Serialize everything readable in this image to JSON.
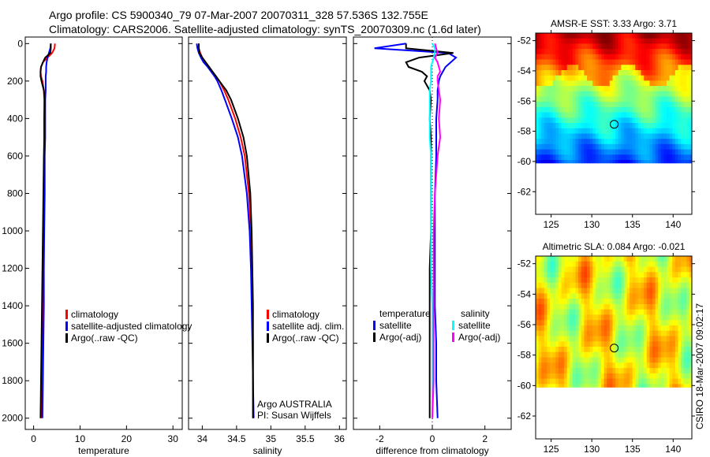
{
  "header": {
    "line1": "Argo profile: CS 5900340_79 07-Mar-2007 20070311_328 57.536S 132.755E",
    "line2": "Climatology: CARS2006. Satellite-adjusted climatology: synTS_20070309.nc (1.6d later)"
  },
  "credit": "CSIRO 18-Mar-2007 09:02:17",
  "colors": {
    "red": "#ff0000",
    "blue": "#0000ff",
    "black": "#000000",
    "cyan": "#00ffff",
    "magenta": "#ff00ff"
  },
  "chart_data": [
    {
      "type": "line",
      "id": "temperature",
      "xlabel": "temperature",
      "xlim": [
        -1.8,
        32
      ],
      "ylim": [
        -35,
        2060
      ],
      "xticks": [
        0,
        10,
        20,
        30
      ],
      "yticks": [
        0,
        200,
        400,
        600,
        800,
        1000,
        1200,
        1400,
        1600,
        1800,
        2000
      ],
      "depth": [
        0,
        25,
        50,
        75,
        100,
        125,
        150,
        175,
        200,
        250,
        300,
        400,
        500,
        600,
        800,
        1000,
        1200,
        1400,
        1600,
        1800,
        2000
      ],
      "series": [
        {
          "name": "climatology",
          "color": "#ff0000",
          "values": [
            4.6,
            4.5,
            4.0,
            3.0,
            2.0,
            1.6,
            1.5,
            1.6,
            1.9,
            2.2,
            2.3,
            2.3,
            2.3,
            2.3,
            2.3,
            2.2,
            2.1,
            2.0,
            1.9,
            1.8,
            1.6
          ]
        },
        {
          "name": "satellite-adjusted climatology",
          "color": "#0000ff",
          "values": [
            3.7,
            3.6,
            3.3,
            3.0,
            2.8,
            2.7,
            2.7,
            2.6,
            2.6,
            2.6,
            2.5,
            2.5,
            2.5,
            2.4,
            2.4,
            2.3,
            2.2,
            2.2,
            2.1,
            2.0,
            1.9
          ]
        },
        {
          "name": "Argo(..raw -QC)",
          "color": "#000000",
          "values": [
            3.7,
            3.7,
            3.6,
            2.5,
            2.0,
            1.6,
            1.5,
            1.5,
            1.7,
            2.2,
            2.4,
            2.3,
            2.3,
            2.2,
            2.1,
            2.0,
            1.9,
            1.8,
            1.7,
            1.6,
            1.5
          ]
        }
      ]
    },
    {
      "type": "line",
      "id": "salinity",
      "xlabel": "salinity",
      "xlim": [
        33.8,
        36.1
      ],
      "ylim": [
        -35,
        2060
      ],
      "xticks": [
        34,
        34.5,
        35,
        35.5,
        36
      ],
      "depth": [
        0,
        25,
        50,
        75,
        100,
        125,
        150,
        175,
        200,
        250,
        300,
        400,
        500,
        600,
        800,
        1000,
        1200,
        1400,
        1600,
        1800,
        2000
      ],
      "series": [
        {
          "name": "climatology",
          "color": "#ff0000",
          "values": [
            33.95,
            33.95,
            33.97,
            34.0,
            34.05,
            34.1,
            34.15,
            34.2,
            34.25,
            34.32,
            34.38,
            34.48,
            34.56,
            34.62,
            34.68,
            34.71,
            34.72,
            34.73,
            34.74,
            34.74,
            34.74
          ]
        },
        {
          "name": "satellite adj. clim.",
          "color": "#0000ff",
          "values": [
            33.92,
            33.93,
            33.95,
            33.98,
            34.02,
            34.08,
            34.13,
            34.18,
            34.22,
            34.28,
            34.33,
            34.43,
            34.52,
            34.58,
            34.65,
            34.69,
            34.71,
            34.72,
            34.73,
            34.74,
            34.75
          ]
        },
        {
          "name": "Argo(..raw -QC)",
          "color": "#000000",
          "values": [
            33.95,
            33.95,
            33.96,
            34.0,
            34.05,
            34.1,
            34.15,
            34.2,
            34.25,
            34.35,
            34.42,
            34.52,
            34.6,
            34.65,
            34.7,
            34.72,
            34.73,
            34.74,
            34.74,
            34.74,
            34.74
          ]
        }
      ],
      "annotation": [
        "Argo AUSTRALIA",
        "PI: Susan Wijffels"
      ]
    },
    {
      "type": "line",
      "id": "difference",
      "xlabel": "difference from climatology",
      "xlim": [
        -3,
        3
      ],
      "ylim": [
        -35,
        2060
      ],
      "xticks": [
        -2,
        0,
        2
      ],
      "depth": [
        0,
        25,
        50,
        75,
        100,
        125,
        150,
        175,
        200,
        250,
        300,
        400,
        500,
        600,
        800,
        1000,
        1200,
        1400,
        1600,
        1800,
        2000
      ],
      "legend_headers": [
        "temperature",
        "salinity"
      ],
      "series": [
        {
          "name": "satellite",
          "group": "temperature",
          "color": "#0000ff",
          "values": [
            -1.0,
            -2.2,
            0.6,
            0.9,
            0.7,
            0.5,
            0.4,
            0.3,
            0.25,
            0.2,
            0.2,
            0.15,
            0.15,
            0.15,
            0.1,
            0.1,
            0.1,
            0.1,
            0.15,
            0.15,
            0.2
          ]
        },
        {
          "name": "Argo(-adj)",
          "group": "temperature",
          "color": "#000000",
          "values": [
            -1.0,
            -1.0,
            0.8,
            -0.5,
            -1.0,
            -0.9,
            -0.4,
            -0.2,
            -0.3,
            -0.1,
            -0.05,
            -0.1,
            -0.05,
            -0.05,
            -0.05,
            -0.05,
            -0.1,
            -0.1,
            -0.1,
            -0.1,
            -0.1
          ]
        },
        {
          "name": "satellite",
          "group": "salinity",
          "color": "#00ffff",
          "values": [
            0.0,
            0.1,
            0.1,
            0.05,
            0.0,
            -0.05,
            -0.05,
            -0.05,
            -0.05,
            -0.1,
            -0.1,
            -0.1,
            -0.1,
            -0.05,
            -0.05,
            -0.05,
            -0.05,
            0.0,
            0.0,
            0.0,
            0.0
          ]
        },
        {
          "name": "Argo(-adj)",
          "group": "salinity",
          "color": "#ff00ff",
          "values": [
            0.1,
            0.15,
            0.2,
            0.1,
            0.2,
            0.25,
            0.3,
            0.2,
            0.2,
            0.25,
            0.3,
            0.25,
            0.3,
            0.2,
            0.1,
            0.05,
            0.05,
            0.05,
            0.05,
            0.05,
            0.0
          ]
        }
      ]
    },
    {
      "type": "heatmap",
      "id": "sst",
      "title": "AMSR-E SST: 3.33 Argo: 3.71",
      "xlim": [
        123.1,
        142.3
      ],
      "ylim": [
        -63.5,
        -51.5
      ],
      "data_lat_min": -60.1,
      "xticks": [
        125,
        130,
        135,
        140
      ],
      "yticks": [
        -52,
        -54,
        -56,
        -58,
        -60,
        -62
      ],
      "marker": {
        "lon": 132.755,
        "lat": -57.536
      }
    },
    {
      "type": "heatmap",
      "id": "sla",
      "title": "Altimetric SLA: 0.084 Argo: -0.021",
      "xlim": [
        123.1,
        142.3
      ],
      "ylim": [
        -63.5,
        -51.5
      ],
      "data_lat_min": -60.1,
      "xticks": [
        125,
        130,
        135,
        140
      ],
      "yticks": [
        -52,
        -54,
        -56,
        -58,
        -60,
        -62
      ],
      "marker": {
        "lon": 132.755,
        "lat": -57.536
      }
    }
  ]
}
